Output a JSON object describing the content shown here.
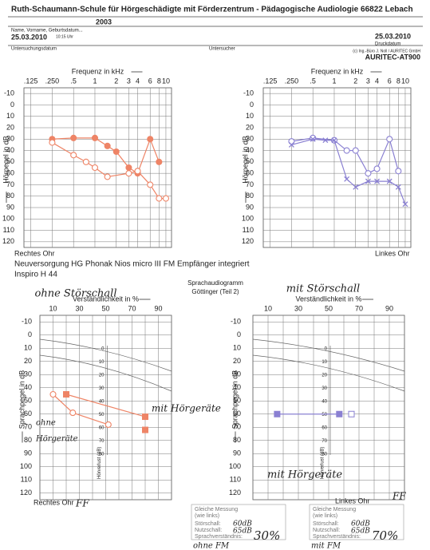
{
  "header": {
    "title": "Ruth-Schaumann-Schule für Hörgeschädigte mit Förderzentrum - Pädagogische Audiologie 66822 Lebach",
    "code": "2003",
    "name_label": "Name, Vorname, Geburtsdatum...",
    "exam_date": "25.03.2010",
    "exam_time": "10:15 Uhr",
    "print_date": "25.03.2010",
    "print_date_label": "Druckdatum",
    "exam_date_label": "Untersuchungsdatum",
    "examiner_label": "Untersucher",
    "copyright": "(c) Ing.-Büro J. Noll / AURITEC GmbH",
    "device": "AURITEC-AT900"
  },
  "fitting": {
    "line1": "Neuversorgung HG    Phonak Nios  micro III  FM Empfänger integriert",
    "line2": "Inspiro H 44"
  },
  "speech": {
    "title": "Sprachaudiogramm",
    "subtitle": "Göttinger (Teil 2)"
  },
  "chart_data": [
    {
      "type": "line",
      "x_label": "Frequenz in kHz",
      "y_label": "Hörpegel in dB",
      "caption": "Rechtes Ohr",
      "xscale": "log",
      "y_reversed": true,
      "xlim": [
        0.1,
        12
      ],
      "xticks": [
        {
          "value": 0.125,
          "label": ".125"
        },
        {
          "value": 0.25,
          "label": ".250"
        },
        {
          "value": 0.5,
          "label": ".5"
        },
        1,
        2,
        3,
        4,
        6,
        8,
        10
      ],
      "ylim": [
        -15,
        125
      ],
      "yticks": [
        -10,
        0,
        10,
        20,
        30,
        40,
        50,
        60,
        70,
        80,
        90,
        100,
        110,
        120
      ],
      "series": [
        {
          "color": "#ee8466",
          "marker": "dot",
          "x": [
            0.25,
            0.5,
            1,
            1.5,
            2,
            3,
            4,
            6,
            8
          ],
          "values": [
            30,
            29,
            29,
            36,
            41,
            55,
            60,
            30,
            50
          ]
        },
        {
          "color": "#ee8466",
          "marker": "circle",
          "x": [
            0.25,
            0.5,
            0.75,
            1,
            1.5,
            3,
            4,
            6,
            8,
            10
          ],
          "values": [
            33,
            44,
            50,
            55,
            63,
            60,
            58,
            70,
            82,
            82
          ]
        }
      ]
    },
    {
      "type": "line",
      "x_label": "Frequenz in kHz",
      "y_label": "Hörpegel in dB",
      "caption": "Linkes Ohr",
      "xscale": "log",
      "y_reversed": true,
      "xlim": [
        0.1,
        12
      ],
      "xticks": [
        {
          "value": 0.125,
          "label": ".125"
        },
        {
          "value": 0.25,
          "label": ".250"
        },
        {
          "value": 0.5,
          "label": ".5"
        },
        1,
        2,
        3,
        4,
        6,
        8,
        10
      ],
      "ylim": [
        -15,
        125
      ],
      "yticks": [
        -10,
        0,
        10,
        20,
        30,
        40,
        50,
        60,
        70,
        80,
        90,
        100,
        110,
        120
      ],
      "series": [
        {
          "color": "#8a80d2",
          "marker": "circle",
          "x": [
            0.25,
            0.5,
            1,
            1.5,
            2,
            3,
            4,
            6,
            8
          ],
          "values": [
            32,
            29,
            31,
            40,
            40,
            60,
            56,
            30,
            58
          ]
        },
        {
          "color": "#8a80d2",
          "marker": "x",
          "x": [
            0.25,
            0.5,
            0.75,
            1,
            1.5,
            2,
            3,
            4,
            6,
            8,
            10
          ],
          "values": [
            35,
            30,
            31,
            31,
            65,
            72,
            67,
            67,
            67,
            72,
            87
          ]
        }
      ]
    },
    {
      "type": "line",
      "title": "ohne Störschall",
      "title_color": "#3fae4a",
      "x_label": "Verständlichkeit in %",
      "y_label": "Sprachpegel in dB",
      "caption": "Rechtes Ohr",
      "y_reversed": true,
      "xlim": [
        0,
        100
      ],
      "xticks": [
        10,
        30,
        50,
        70,
        90
      ],
      "xminorticks": [
        0,
        20,
        40,
        60,
        80,
        100
      ],
      "ylim": [
        -15,
        125
      ],
      "yticks": [
        -10,
        0,
        10,
        20,
        30,
        40,
        50,
        60,
        70,
        80,
        90,
        100,
        110,
        120
      ],
      "loss_label": "Hörverlust (dB)",
      "loss_ticks": [
        0,
        10,
        20,
        30,
        40,
        50,
        60,
        70,
        80
      ],
      "annotations": [
        "mit Hörgeräte",
        "ohne",
        "Hörgeräte",
        "FF"
      ],
      "series": [
        {
          "color": "#ee8466",
          "marker": "circle",
          "x": [
            10,
            25,
            52
          ],
          "values": [
            45,
            59,
            68
          ]
        },
        {
          "color": "#ee8466",
          "marker": "square",
          "x": [
            20,
            80
          ],
          "values": [
            45,
            62
          ]
        },
        {
          "color": "#ee8466",
          "marker": "square",
          "x": [
            80
          ],
          "values": [
            72
          ]
        }
      ]
    },
    {
      "type": "line",
      "title": "mit Störschall",
      "title_color": "#d0307a",
      "x_label": "Verständlichkeit in %",
      "y_label": "Sprachpegel in dB",
      "caption": "Linkes Ohr",
      "y_reversed": true,
      "xlim": [
        0,
        100
      ],
      "xticks": [
        10,
        30,
        50,
        70,
        90
      ],
      "xminorticks": [
        0,
        20,
        40,
        60,
        80,
        100
      ],
      "ylim": [
        -15,
        125
      ],
      "yticks": [
        -10,
        0,
        10,
        20,
        30,
        40,
        50,
        60,
        70,
        80,
        90,
        100,
        110,
        120
      ],
      "loss_label": "Hörverlust (dB)",
      "loss_ticks": [
        0,
        10,
        20,
        30,
        40,
        50,
        60,
        70,
        80
      ],
      "annotations": [
        "mit Hörgeräte",
        "FF"
      ],
      "series": [
        {
          "color": "#8a80d2",
          "marker": "square",
          "x": [
            16,
            57
          ],
          "values": [
            60,
            60
          ]
        },
        {
          "color": "#8a80d2",
          "marker": "opensquare",
          "x": [
            65
          ],
          "values": [
            60
          ]
        }
      ]
    }
  ],
  "summaries": [
    {
      "heading": "Gleiche Messung",
      "heading2": "(wie links)",
      "noise_label": "Störschall:",
      "noise": "60dB",
      "signal_label": "Nutzschall:",
      "signal": "65dB",
      "score_label": "Sprachverständnis:",
      "score": "30%",
      "note": "ohne FM"
    },
    {
      "heading": "Gleiche Messung",
      "heading2": "(wie links)",
      "noise_label": "Störschall:",
      "noise": "60dB",
      "signal_label": "Nutzschall:",
      "signal": "65dB",
      "score_label": "Sprachverständnis:",
      "score": "70%",
      "note": "mit FM"
    }
  ]
}
